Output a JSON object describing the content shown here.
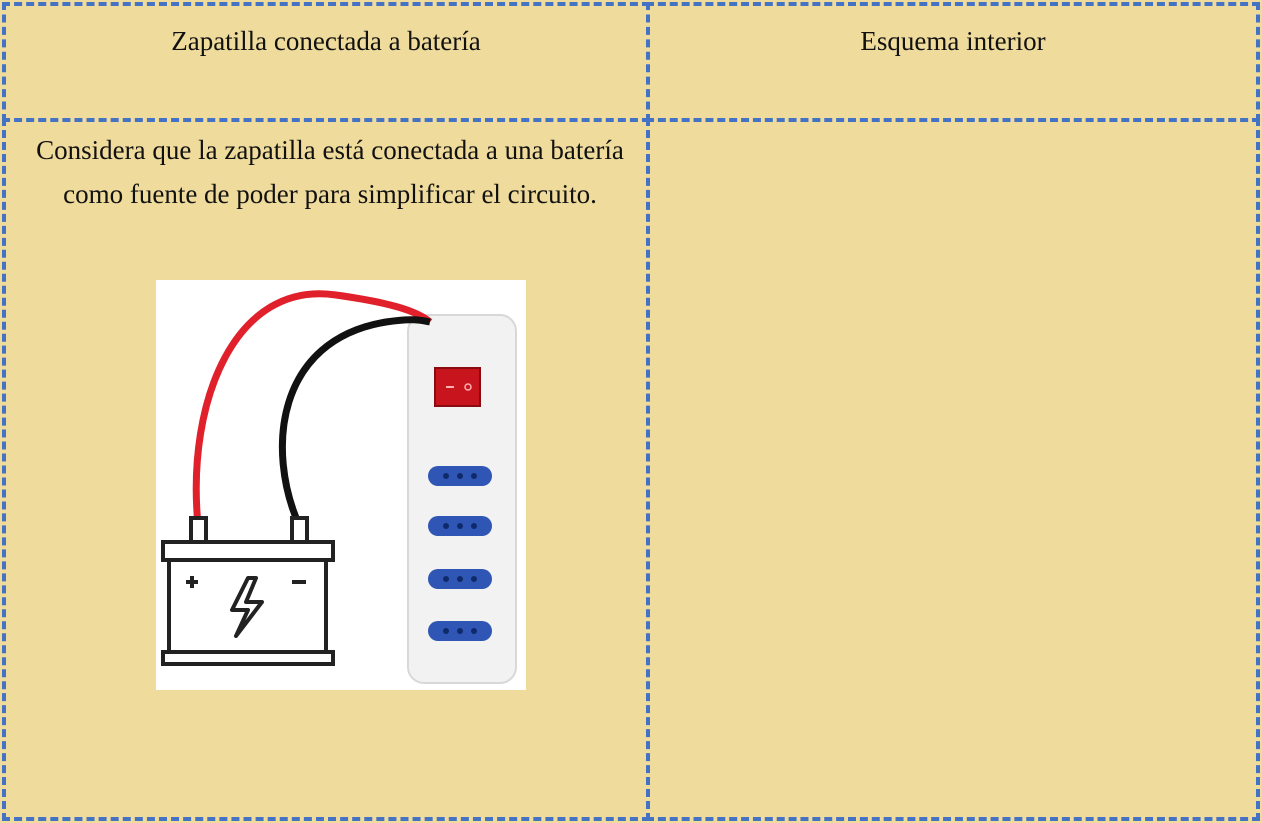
{
  "table": {
    "header": [
      "Zapatilla conectada a batería",
      "Esquema interior"
    ],
    "body_text": "Considera que la zapatilla está conectada a una batería como fuente de poder para simplificar el circuito."
  }
}
